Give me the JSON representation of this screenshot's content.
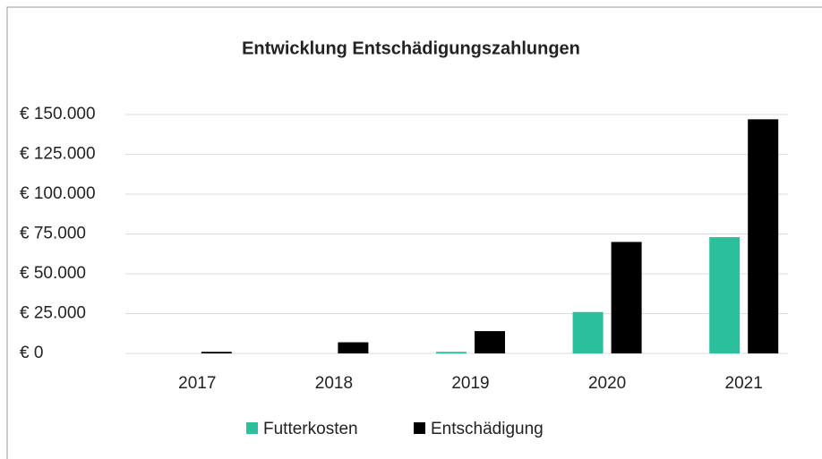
{
  "chart_data": {
    "type": "bar",
    "title": "Entwicklung Entschädigungszahlungen",
    "categories": [
      "2017",
      "2018",
      "2019",
      "2020",
      "2021"
    ],
    "series": [
      {
        "name": "Futterkosten",
        "color": "#2bbf9b",
        "values": [
          0,
          0,
          1000,
          26000,
          73000
        ]
      },
      {
        "name": "Entschädigung",
        "color": "#000000",
        "values": [
          1000,
          7000,
          14000,
          70000,
          147000
        ]
      }
    ],
    "ylim": [
      0,
      150000
    ],
    "yticks": [
      {
        "value": 0,
        "label": "€ 0"
      },
      {
        "value": 25000,
        "label": "€ 25.000"
      },
      {
        "value": 50000,
        "label": "€ 50.000"
      },
      {
        "value": 75000,
        "label": "€ 75.000"
      },
      {
        "value": 100000,
        "label": "€ 100.000"
      },
      {
        "value": 125000,
        "label": "€ 125.000"
      },
      {
        "value": 150000,
        "label": "€ 150.000"
      }
    ],
    "grid": true,
    "legend": "bottom"
  }
}
